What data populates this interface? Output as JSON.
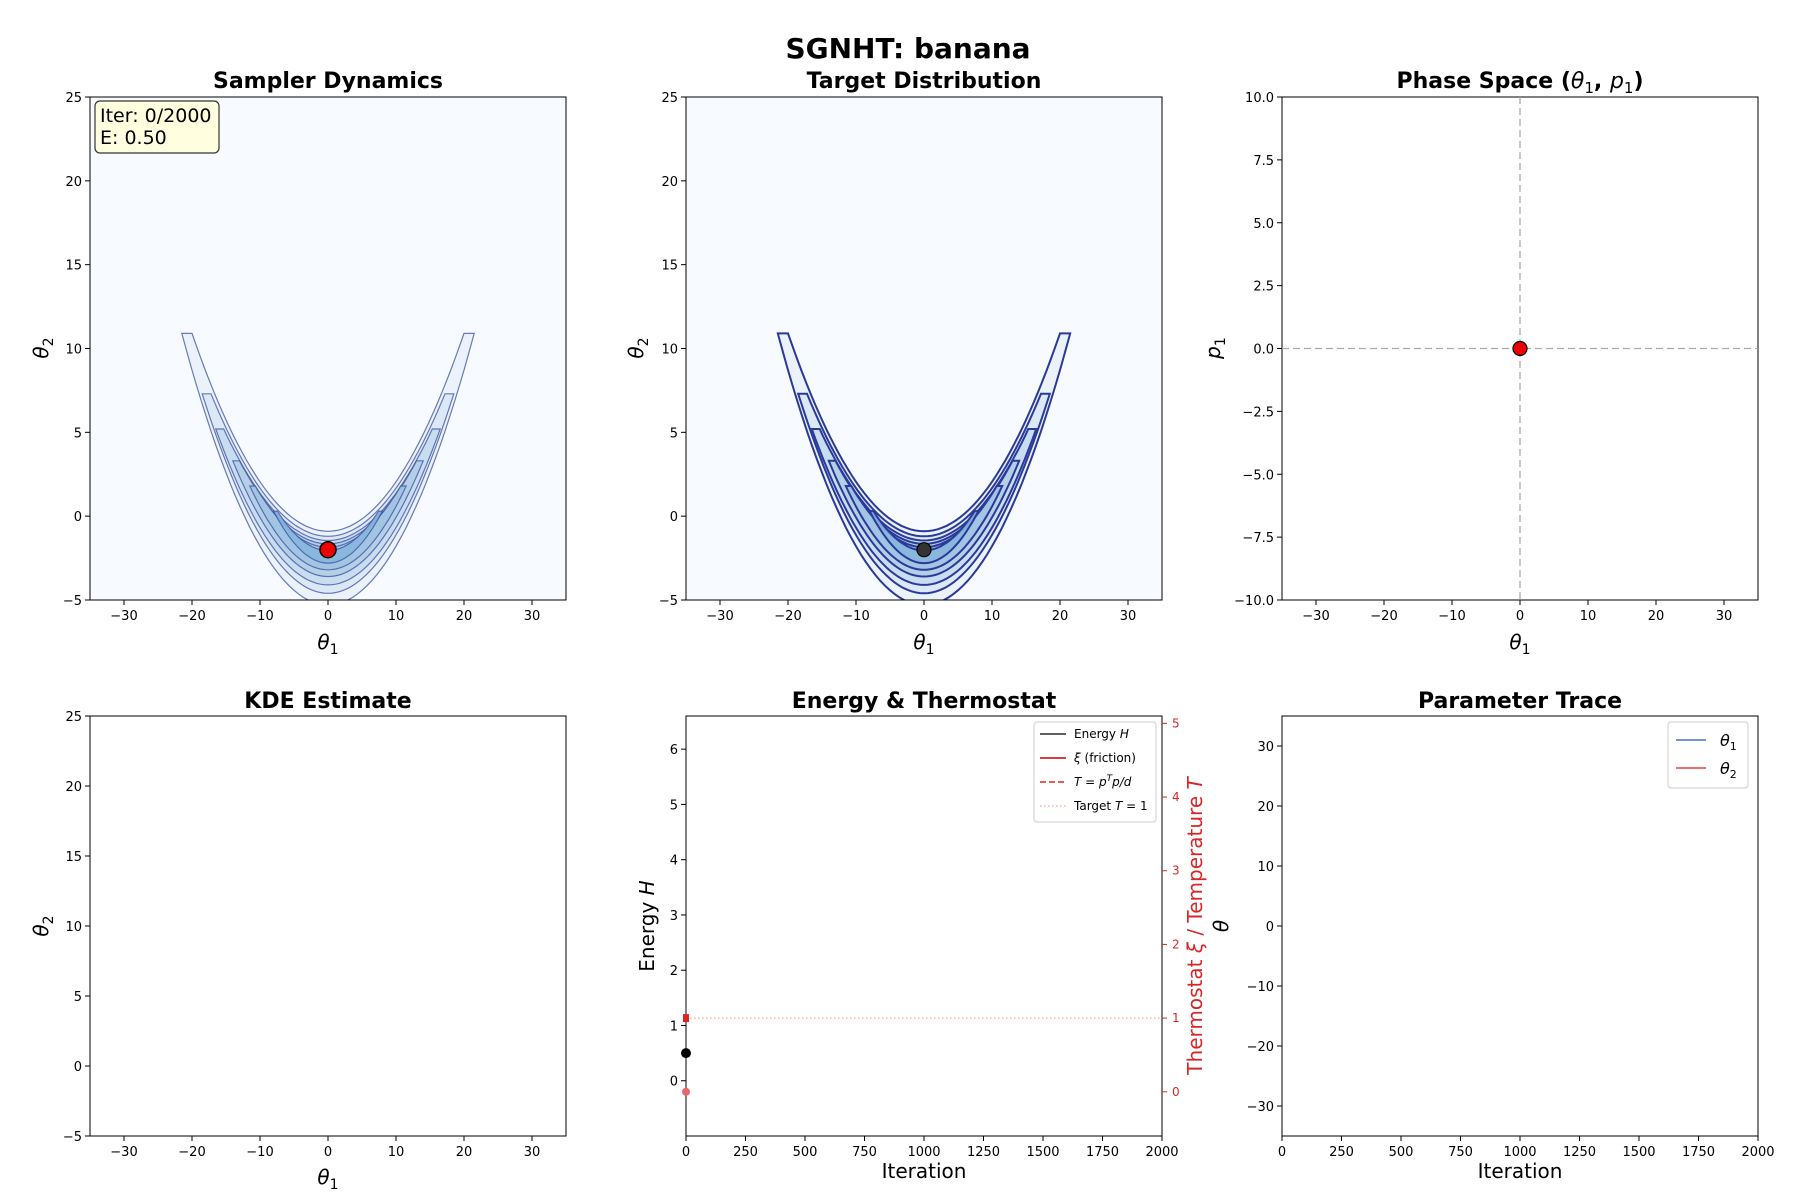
{
  "suptitle": "SGNHT: banana",
  "sampler": {
    "title": "Sampler Dynamics",
    "iter_text": "Iter: 0/2000",
    "energy_text": "E: 0.50",
    "xticks": [
      "−30",
      "−20",
      "−10",
      "0",
      "10",
      "20",
      "30"
    ],
    "yticks": [
      "−5",
      "0",
      "5",
      "10",
      "15",
      "20",
      "25"
    ],
    "xlim": [
      -35,
      35
    ],
    "ylim": [
      -5,
      25
    ],
    "current_point": {
      "x": 0,
      "y": -2
    },
    "point_color": "#ee0000"
  },
  "target": {
    "title": "Target Distribution",
    "xticks": [
      "−30",
      "−20",
      "−10",
      "0",
      "10",
      "20",
      "30"
    ],
    "yticks": [
      "−5",
      "0",
      "5",
      "10",
      "15",
      "20",
      "25"
    ],
    "xlim": [
      -35,
      35
    ],
    "ylim": [
      -5,
      25
    ],
    "marker": {
      "x": 0,
      "y": -2
    },
    "contour_color": "#2a3a9a"
  },
  "phase": {
    "title_main": "Phase Space (",
    "title_theta": "θ",
    "title_sub1": "1",
    "title_comma": ", ",
    "title_p": "p",
    "title_sub2": "1",
    "title_close": ")",
    "xticks": [
      "−30",
      "−20",
      "−10",
      "0",
      "10",
      "20",
      "30"
    ],
    "yticks": [
      "−10.0",
      "−7.5",
      "−5.0",
      "−2.5",
      "0.0",
      "2.5",
      "5.0",
      "7.5",
      "10.0"
    ],
    "xlim": [
      -35,
      35
    ],
    "ylim": [
      -10,
      10
    ],
    "point": {
      "x": 0,
      "y": 0
    },
    "ylabel_sym": "p",
    "ylabel_sub": "1"
  },
  "kde": {
    "title": "KDE Estimate",
    "xticks": [
      "−30",
      "−20",
      "−10",
      "0",
      "10",
      "20",
      "30"
    ],
    "yticks": [
      "−5",
      "0",
      "5",
      "10",
      "15",
      "20",
      "25"
    ],
    "xlim": [
      -35,
      35
    ],
    "ylim": [
      -5,
      25
    ]
  },
  "energy": {
    "title": "Energy & Thermostat",
    "xticks": [
      "0",
      "250",
      "500",
      "750",
      "1000",
      "1250",
      "1500",
      "1750",
      "2000"
    ],
    "yticks": [
      "0",
      "1",
      "2",
      "3",
      "4",
      "5",
      "6"
    ],
    "y2ticks": [
      "0",
      "1",
      "2",
      "3",
      "4",
      "5"
    ],
    "xlabel": "Iteration",
    "ylabel": "Energy",
    "ylabel_sym": "H",
    "y2label_a": "Thermostat ",
    "y2label_xi": "ξ",
    "y2label_b": " / Temperature ",
    "y2label_T": "T",
    "xlim": [
      0,
      2000
    ],
    "ylim": [
      -1,
      6.6
    ],
    "y2lim": [
      -0.6,
      5.1
    ],
    "energy_point": {
      "x": 0,
      "y": 0.5
    },
    "xi_point": {
      "x": 0,
      "y": 0
    },
    "temp_point": {
      "x": 0,
      "y": 1.0
    },
    "target_T": 1,
    "legend": [
      {
        "label": "Energy ",
        "sym": "H",
        "color": "#000000",
        "style": "solid"
      },
      {
        "label": " (friction)",
        "sym": "ξ",
        "color": "#cc0000",
        "style": "solid",
        "sym_first": true
      },
      {
        "label": "T = p",
        "sym": "",
        "color": "#dd2222",
        "style": "dashed"
      },
      {
        "label": "Target ",
        "sym": "T",
        "color": "#f4a582",
        "style": "dotted"
      }
    ],
    "legend_temp_sup": "T",
    "legend_temp_rest": "p/d",
    "legend_target_rest": " = 1"
  },
  "trace": {
    "title": "Parameter Trace",
    "xticks": [
      "0",
      "250",
      "500",
      "750",
      "1000",
      "1250",
      "1500",
      "1750",
      "2000"
    ],
    "yticks": [
      "−30",
      "−20",
      "−10",
      "0",
      "10",
      "20",
      "30"
    ],
    "xlabel": "Iteration",
    "ylabel_sym": "θ",
    "xlim": [
      0,
      2000
    ],
    "ylim": [
      -35,
      35
    ],
    "legend": [
      {
        "sym": "θ",
        "sub": "1",
        "color": "#4a72c8"
      },
      {
        "sym": "θ",
        "sub": "2",
        "color": "#e8413f"
      }
    ]
  },
  "axis_labels": {
    "theta": "θ",
    "sub1": "1",
    "sub2": "2"
  }
}
